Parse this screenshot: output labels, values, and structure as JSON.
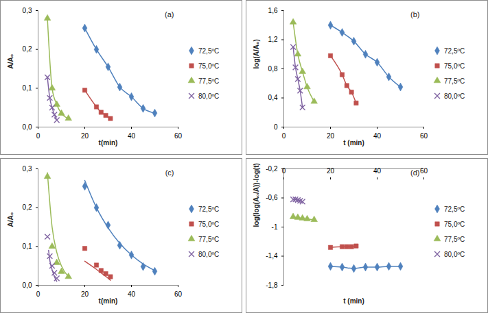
{
  "chart_data": [
    {
      "type": "line",
      "label": "(a)",
      "xlabel": "t(min)",
      "ylabel": "A/A₀",
      "xlim": [
        0,
        60
      ],
      "xticks": [
        0,
        20,
        40,
        60
      ],
      "ylim": [
        0,
        0.3
      ],
      "yticks": [
        {
          "value": 0,
          "label": "0,0"
        },
        {
          "value": 0.1,
          "label": "0,1"
        },
        {
          "value": 0.2,
          "label": "0,2"
        },
        {
          "value": 0.3,
          "label": "0,3"
        }
      ],
      "grid": false,
      "legend": "right",
      "series": [
        {
          "name": "72,5ºC",
          "color": "#4f81bd",
          "marker": "diamond",
          "x": [
            20,
            25,
            30,
            35,
            40,
            45,
            50
          ],
          "values": [
            0.255,
            0.2,
            0.155,
            0.103,
            0.078,
            0.048,
            0.036
          ]
        },
        {
          "name": "75,0ºC",
          "color": "#c0504d",
          "marker": "square",
          "x": [
            20,
            25,
            27,
            29,
            31
          ],
          "values": [
            0.095,
            0.052,
            0.038,
            0.03,
            0.022
          ]
        },
        {
          "name": "77,5ºC",
          "color": "#9bbb59",
          "marker": "triangle",
          "x": [
            4,
            6,
            8,
            10,
            13
          ],
          "values": [
            0.28,
            0.1,
            0.058,
            0.035,
            0.022
          ]
        },
        {
          "name": "80,0ºC",
          "color": "#8064a2",
          "marker": "times",
          "x": [
            4,
            5,
            6,
            7,
            8
          ],
          "values": [
            0.128,
            0.075,
            0.05,
            0.032,
            0.018
          ]
        }
      ]
    },
    {
      "type": "line",
      "label": "(b)",
      "xlabel": "t (min)",
      "ylabel": "log(A/A₀)",
      "xlim": [
        0,
        60
      ],
      "xticks": [
        0,
        20,
        40,
        60
      ],
      "ylim": [
        0,
        1.6
      ],
      "yticks": [
        0,
        {
          "value": 0.4,
          "label": "0,4"
        },
        {
          "value": 0.8,
          "label": "0,8"
        },
        {
          "value": 1.2,
          "label": "1,2"
        },
        {
          "value": 1.6,
          "label": "1,6"
        }
      ],
      "grid": false,
      "legend": "right",
      "series": [
        {
          "name": "72,5ºC",
          "color": "#4f81bd",
          "marker": "diamond",
          "x": [
            20,
            25,
            30,
            35,
            40,
            45,
            50
          ],
          "values": [
            1.4,
            1.3,
            1.18,
            1.0,
            0.89,
            0.69,
            0.55
          ]
        },
        {
          "name": "75,0ºC",
          "color": "#c0504d",
          "marker": "square",
          "x": [
            20,
            25,
            27,
            29,
            31
          ],
          "values": [
            0.98,
            0.72,
            0.57,
            0.48,
            0.33
          ]
        },
        {
          "name": "77,5ºC",
          "color": "#9bbb59",
          "marker": "triangle",
          "x": [
            4,
            6,
            8,
            10,
            13
          ],
          "values": [
            1.44,
            1.0,
            0.76,
            0.55,
            0.35
          ]
        },
        {
          "name": "80,0ºC",
          "color": "#8064a2",
          "marker": "times",
          "x": [
            4,
            5,
            6,
            7,
            8
          ],
          "values": [
            1.1,
            0.82,
            0.66,
            0.5,
            0.27
          ]
        }
      ]
    },
    {
      "type": "scatter",
      "label": "(c)",
      "xlabel": "t(min)",
      "ylabel": "A/A₀",
      "xlim": [
        0,
        60
      ],
      "xticks": [
        0,
        20,
        40,
        60
      ],
      "ylim": [
        0,
        0.3
      ],
      "yticks": [
        {
          "value": 0,
          "label": "0,0"
        },
        {
          "value": 0.1,
          "label": "0,1"
        },
        {
          "value": 0.2,
          "label": "0,2"
        },
        {
          "value": 0.3,
          "label": "0,3"
        }
      ],
      "grid": false,
      "legend": "right",
      "series": [
        {
          "name": "72,5ºC",
          "color": "#4f81bd",
          "marker": "diamond",
          "x": [
            20,
            25,
            30,
            35,
            40,
            45,
            50
          ],
          "values": [
            0.255,
            0.2,
            0.155,
            0.103,
            0.078,
            0.048,
            0.036
          ],
          "fit": {
            "x": [
              20,
              25,
              30,
              35,
              40,
              45,
              50
            ],
            "values": [
              0.27,
              0.2,
              0.148,
              0.108,
              0.078,
              0.055,
              0.038
            ]
          }
        },
        {
          "name": "75,0ºC",
          "color": "#c0504d",
          "marker": "square",
          "x": [
            20,
            25,
            27,
            29,
            31
          ],
          "values": [
            0.095,
            0.052,
            0.038,
            0.03,
            0.022
          ],
          "fit": {
            "x": [
              20,
              25,
              27,
              29,
              31
            ],
            "values": [
              0.062,
              0.041,
              0.032,
              0.023,
              0.013
            ]
          }
        },
        {
          "name": "77,5ºC",
          "color": "#9bbb59",
          "marker": "triangle",
          "x": [
            4,
            6,
            8,
            10,
            13
          ],
          "values": [
            0.28,
            0.1,
            0.058,
            0.035,
            0.022
          ],
          "fit": {
            "x": [
              4,
              6,
              8,
              10,
              13
            ],
            "values": [
              0.29,
              0.15,
              0.085,
              0.05,
              0.022
            ]
          }
        },
        {
          "name": "80,0ºC",
          "color": "#8064a2",
          "marker": "times",
          "x": [
            4,
            5,
            6,
            7,
            8
          ],
          "values": [
            0.125,
            0.075,
            0.05,
            0.032,
            0.018
          ],
          "fit": {
            "x": [
              4.5,
              5,
              6,
              7,
              8
            ],
            "values": [
              0.09,
              0.065,
              0.04,
              0.022,
              0.01
            ]
          }
        }
      ]
    },
    {
      "type": "line",
      "label": "(d)",
      "xlabel": "t (min)",
      "ylabel": "log(log(A₀/A))-log(t)",
      "xlim": [
        0,
        60
      ],
      "xticks": [
        0,
        20,
        40,
        60
      ],
      "ylim": [
        -1.8,
        -0.2
      ],
      "yticks": [
        {
          "value": -1.8,
          "label": "-1,8"
        },
        {
          "value": -1.4,
          "label": "-1,4"
        },
        -1,
        {
          "value": -0.6,
          "label": "-0,6"
        },
        {
          "value": -0.2,
          "label": "-0,2"
        }
      ],
      "grid": false,
      "legend": "right",
      "series": [
        {
          "name": "72,5ºC",
          "color": "#4f81bd",
          "marker": "diamond",
          "x": [
            20,
            25,
            30,
            35,
            40,
            45,
            50
          ],
          "values": [
            -1.54,
            -1.55,
            -1.57,
            -1.55,
            -1.55,
            -1.54,
            -1.54
          ]
        },
        {
          "name": "75,0ºC",
          "color": "#c0504d",
          "marker": "square",
          "x": [
            20,
            25,
            27,
            29,
            31
          ],
          "values": [
            -1.28,
            -1.27,
            -1.27,
            -1.27,
            -1.26
          ]
        },
        {
          "name": "77,5ºC",
          "color": "#9bbb59",
          "marker": "triangle",
          "x": [
            4,
            6,
            8,
            10,
            13
          ],
          "values": [
            -0.86,
            -0.87,
            -0.88,
            -0.89,
            -0.9
          ]
        },
        {
          "name": "80,0ºC",
          "color": "#8064a2",
          "marker": "times",
          "x": [
            4,
            5,
            6,
            7,
            8
          ],
          "values": [
            -0.62,
            -0.62,
            -0.63,
            -0.64,
            -0.65
          ]
        }
      ]
    }
  ]
}
